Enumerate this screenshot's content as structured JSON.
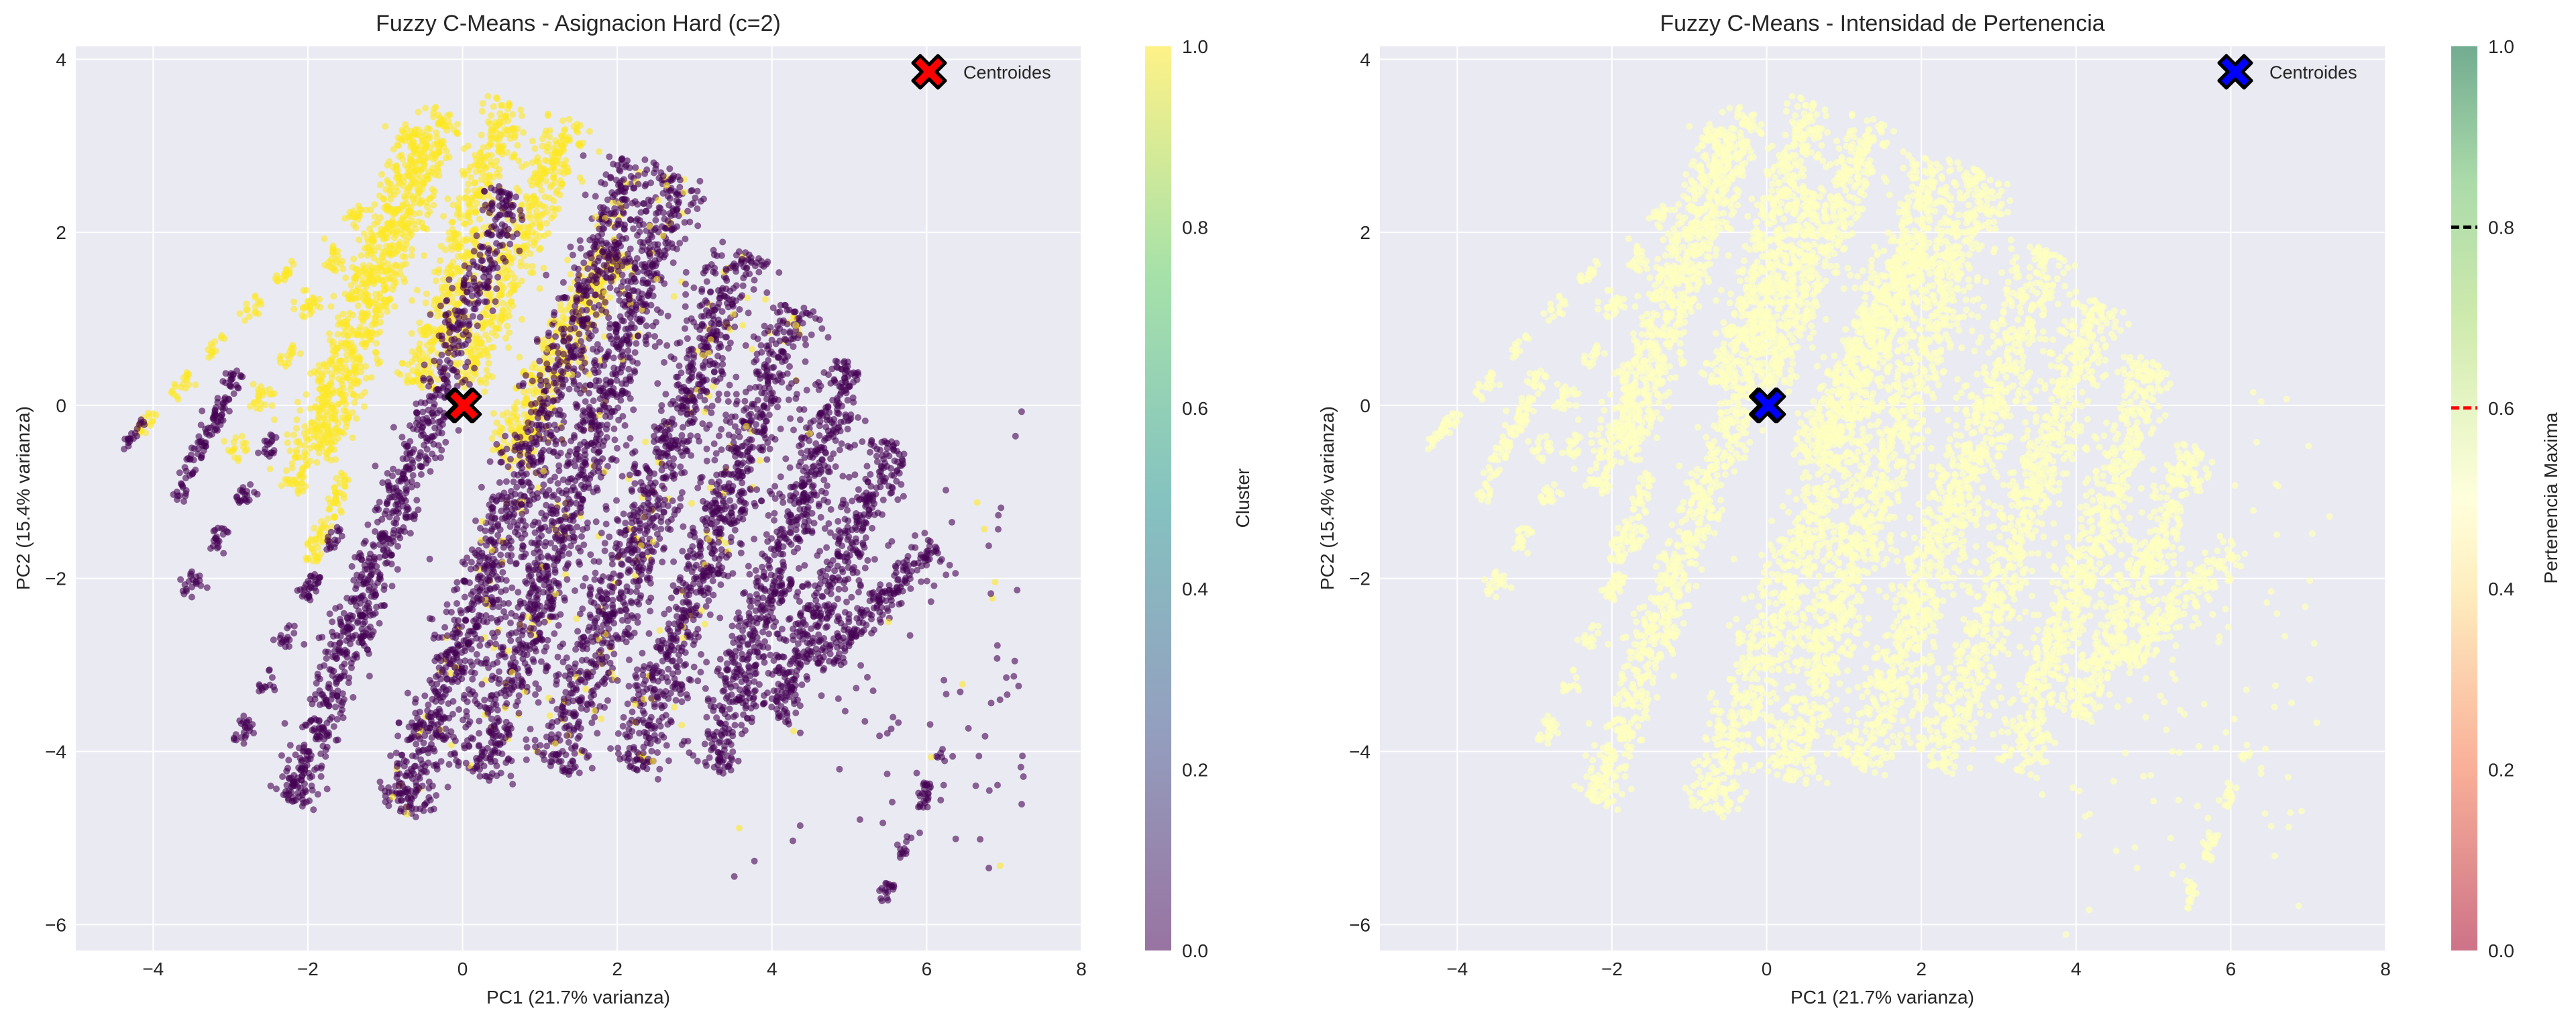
{
  "chart_data": [
    {
      "type": "scatter",
      "title": "Fuzzy C-Means - Asignacion Hard (c=2)",
      "xlabel": "PC1 (21.7% varianza)",
      "ylabel": "PC2 (15.4% varianza)",
      "xlim": [
        -5,
        8
      ],
      "ylim": [
        -6.3,
        4.15
      ],
      "xticks": [
        "−4",
        "−2",
        "0",
        "2",
        "4",
        "6",
        "8"
      ],
      "xtick_values": [
        -4,
        -2,
        0,
        2,
        4,
        6,
        8
      ],
      "yticks": [
        "−6",
        "−4",
        "−2",
        "0",
        "2",
        "4"
      ],
      "ytick_values": [
        -6,
        -4,
        -2,
        0,
        2,
        4
      ],
      "grid": true,
      "color_by": "cluster",
      "cluster_colors": {
        "0": "#440154",
        "1": "#fde725"
      },
      "point_bands": [
        {
          "cluster": 1,
          "from": [
            -4.2,
            -0.3
          ],
          "to": [
            -2.0,
            1.8
          ],
          "spread": 0.04,
          "dashed": true
        },
        {
          "cluster": 1,
          "from": [
            -3.0,
            -0.6
          ],
          "to": [
            -1.3,
            2.3
          ],
          "spread": 0.08,
          "dashed": true
        },
        {
          "cluster": 1,
          "from": [
            -2.2,
            -1.0
          ],
          "to": [
            -0.6,
            3.2
          ],
          "spread": 0.12
        },
        {
          "cluster": 1,
          "from": [
            -1.8,
            -0.6
          ],
          "to": [
            -0.2,
            3.4
          ],
          "spread": 0.12
        },
        {
          "cluster": 1,
          "from": [
            -0.6,
            0.2
          ],
          "to": [
            0.6,
            3.5
          ],
          "spread": 0.15
        },
        {
          "cluster": 1,
          "from": [
            0.0,
            0.2
          ],
          "to": [
            1.4,
            3.3
          ],
          "spread": 0.15
        },
        {
          "cluster": 1,
          "from": [
            0.5,
            -0.6
          ],
          "to": [
            2.0,
            1.8
          ],
          "spread": 0.15
        },
        {
          "cluster": 1,
          "from": [
            -2.0,
            -1.8
          ],
          "to": [
            -1.5,
            -0.8
          ],
          "spread": 0.06
        },
        {
          "cluster": 0,
          "from": [
            -4.4,
            -0.5
          ],
          "to": [
            -4.1,
            -0.2
          ],
          "spread": 0.03
        },
        {
          "cluster": 0,
          "from": [
            -3.7,
            -1.1
          ],
          "to": [
            -2.9,
            0.4
          ],
          "spread": 0.06
        },
        {
          "cluster": 0,
          "from": [
            -3.6,
            -2.2
          ],
          "to": [
            -2.3,
            -0.2
          ],
          "spread": 0.06,
          "dashed": true
        },
        {
          "cluster": 0,
          "from": [
            -2.9,
            -3.9
          ],
          "to": [
            -1.5,
            -1.2
          ],
          "spread": 0.06,
          "dashed": true
        },
        {
          "cluster": 0,
          "from": [
            -2.2,
            -4.6
          ],
          "to": [
            0.6,
            2.5
          ],
          "spread": 0.14
        },
        {
          "cluster": 0,
          "from": [
            -0.8,
            -4.7
          ],
          "to": [
            2.2,
            2.8
          ],
          "spread": 0.18
        },
        {
          "cluster": 0,
          "from": [
            0.2,
            -4.3
          ],
          "to": [
            2.8,
            2.7
          ],
          "spread": 0.2
        },
        {
          "cluster": 0,
          "from": [
            1.2,
            -4.2
          ],
          "to": [
            3.6,
            1.8
          ],
          "spread": 0.2
        },
        {
          "cluster": 0,
          "from": [
            2.2,
            -4.2
          ],
          "to": [
            4.3,
            1.2
          ],
          "spread": 0.18
        },
        {
          "cluster": 0,
          "from": [
            3.2,
            -4.2
          ],
          "to": [
            5.0,
            0.5
          ],
          "spread": 0.16
        },
        {
          "cluster": 0,
          "from": [
            4.0,
            -3.6
          ],
          "to": [
            5.6,
            -0.4
          ],
          "spread": 0.14
        },
        {
          "cluster": 0,
          "from": [
            4.6,
            -3.0
          ],
          "to": [
            6.1,
            -1.6
          ],
          "spread": 0.1
        },
        {
          "cluster": 0,
          "from": [
            5.4,
            -5.8
          ],
          "to": [
            6.2,
            -4.0
          ],
          "spread": 0.04,
          "dashed": true
        },
        {
          "cluster": 0,
          "from": [
            3.5,
            -5.0
          ],
          "to": [
            7.3,
            -1.0
          ],
          "spread": 0.9,
          "sparse": true
        }
      ],
      "centroids": [
        {
          "x": 0.0,
          "y": 0.0
        },
        {
          "x": 0.02,
          "y": 0.0
        }
      ],
      "centroid_color": "#ff0000",
      "legend": {
        "label": "Centroides",
        "position": "top-right"
      },
      "colorbar": {
        "label": "Cluster",
        "colormap": "viridis",
        "range": [
          0.0,
          1.0
        ],
        "ticks": [
          "0.0",
          "0.2",
          "0.4",
          "0.6",
          "0.8",
          "1.0"
        ],
        "tick_values": [
          0,
          0.2,
          0.4,
          0.6,
          0.8,
          1.0
        ]
      }
    },
    {
      "type": "scatter",
      "title": "Fuzzy C-Means - Intensidad de Pertenencia",
      "xlabel": "PC1 (21.7% varianza)",
      "ylabel": "PC2 (15.4% varianza)",
      "xlim": [
        -5,
        8
      ],
      "ylim": [
        -6.3,
        4.15
      ],
      "xticks": [
        "−4",
        "−2",
        "0",
        "2",
        "4",
        "6",
        "8"
      ],
      "xtick_values": [
        -4,
        -2,
        0,
        2,
        4,
        6,
        8
      ],
      "yticks": [
        "−6",
        "−4",
        "−2",
        "0",
        "2",
        "4"
      ],
      "ytick_values": [
        -6,
        -4,
        -2,
        0,
        2,
        4
      ],
      "grid": true,
      "color_by": "max_membership",
      "point_membership_approx": 0.5,
      "point_color": "#feffbf",
      "centroids": [
        {
          "x": 0.0,
          "y": 0.0
        },
        {
          "x": 0.02,
          "y": 0.0
        }
      ],
      "centroid_color": "#0000ff",
      "legend": {
        "label": "Centroides",
        "position": "top-right"
      },
      "colorbar": {
        "label": "Pertenencia Maxima",
        "colormap": "RdYlGn",
        "range": [
          0.0,
          1.0
        ],
        "ticks": [
          "0.0",
          "0.2",
          "0.4",
          "0.6",
          "0.8",
          "1.0"
        ],
        "tick_values": [
          0,
          0.2,
          0.4,
          0.6,
          0.8,
          1.0
        ],
        "reference_lines": [
          {
            "value": 0.8,
            "color": "#000000",
            "style": "dashed"
          },
          {
            "value": 0.6,
            "color": "#ff0000",
            "style": "dashed"
          }
        ]
      }
    }
  ]
}
